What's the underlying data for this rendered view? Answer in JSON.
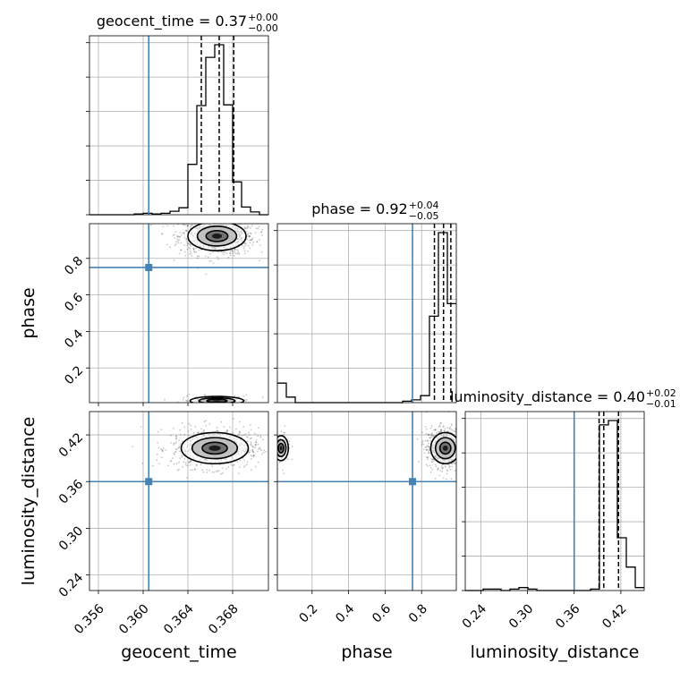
{
  "chart_data": {
    "type": "corner",
    "parameters": [
      "geocent_time",
      "phase",
      "luminosity_distance"
    ],
    "axis_labels": [
      "geocent_time",
      "phase",
      "luminosity_distance"
    ],
    "ranges": [
      [
        0.3552,
        0.3712
      ],
      [
        0.01,
        0.99
      ],
      [
        0.22,
        0.45
      ]
    ],
    "ticks": {
      "geocent_time": [
        "0.356",
        "0.360",
        "0.364",
        "0.368"
      ],
      "phase": [
        "0.2",
        "0.4",
        "0.6",
        "0.8"
      ],
      "luminosity_distance": [
        "0.24",
        "0.30",
        "0.36",
        "0.42"
      ]
    },
    "truths": [
      0.3605,
      0.75,
      0.36
    ],
    "truth_color": "#4682b4",
    "hist_color": "#000000",
    "titles": [
      {
        "text": "geocent_time = 0.37",
        "plus": "+0.00",
        "minus": "−0.00"
      },
      {
        "text": "phase = 0.92",
        "plus": "+0.04",
        "minus": "−0.05"
      },
      {
        "text": "luminosity_distance = 0.40",
        "plus": "+0.02",
        "minus": "−0.01"
      }
    ],
    "quantiles": {
      "geocent_time": [
        0.3652,
        0.3668,
        0.3681
      ],
      "phase": [
        0.87,
        0.92,
        0.96
      ],
      "luminosity_distance": [
        0.392,
        0.398,
        0.417
      ]
    },
    "histograms": {
      "geocent_time": {
        "edges": [
          0.3552,
          0.356,
          0.3568,
          0.3576,
          0.3584,
          0.3592,
          0.36,
          0.3608,
          0.3616,
          0.3624,
          0.3632,
          0.364,
          0.3648,
          0.3656,
          0.3664,
          0.3672,
          0.368,
          0.3688,
          0.3696,
          0.3704,
          0.3712
        ],
        "counts": [
          0,
          0,
          0,
          0,
          0,
          1,
          2,
          1,
          2,
          5,
          10,
          72,
          156,
          225,
          243,
          157,
          47,
          11,
          4,
          0
        ]
      },
      "phase": {
        "edges": [
          0.01,
          0.059,
          0.108,
          0.157,
          0.206,
          0.255,
          0.304,
          0.353,
          0.402,
          0.451,
          0.5,
          0.549,
          0.598,
          0.647,
          0.696,
          0.745,
          0.794,
          0.843,
          0.892,
          0.941,
          0.99
        ],
        "counts": [
          14,
          4,
          0,
          0,
          0,
          0,
          0,
          0,
          0,
          0,
          0,
          0,
          0,
          0,
          1,
          2,
          5,
          62,
          122,
          71
        ]
      },
      "luminosity_distance": {
        "edges": [
          0.22,
          0.2315,
          0.243,
          0.2545,
          0.266,
          0.2775,
          0.289,
          0.3005,
          0.312,
          0.3235,
          0.335,
          0.3465,
          0.358,
          0.3695,
          0.381,
          0.3925,
          0.404,
          0.4155,
          0.427,
          0.4385,
          0.45
        ],
        "counts": [
          0,
          0,
          1,
          1,
          0,
          1,
          2,
          1,
          0,
          0,
          0,
          0,
          0,
          0,
          1,
          113,
          116,
          36,
          16,
          2
        ]
      }
    },
    "pair_modes": [
      {
        "x": "geocent_time",
        "y": "phase",
        "centers": [
          {
            "x": 0.3666,
            "y": 0.922,
            "sx": 0.0013,
            "sy": 0.04,
            "n": 900
          },
          {
            "x": 0.3666,
            "y": 0.02,
            "sx": 0.0012,
            "sy": 0.012,
            "n": 160
          }
        ]
      },
      {
        "x": "geocent_time",
        "y": "luminosity_distance",
        "centers": [
          {
            "x": 0.3664,
            "y": 0.403,
            "sx": 0.0015,
            "sy": 0.01,
            "n": 800
          }
        ]
      },
      {
        "x": "phase",
        "y": "luminosity_distance",
        "centers": [
          {
            "x": 0.93,
            "y": 0.403,
            "sx": 0.04,
            "sy": 0.01,
            "n": 800
          },
          {
            "x": 0.03,
            "y": 0.403,
            "sx": 0.02,
            "sy": 0.008,
            "n": 160
          }
        ]
      }
    ],
    "grid": true
  }
}
